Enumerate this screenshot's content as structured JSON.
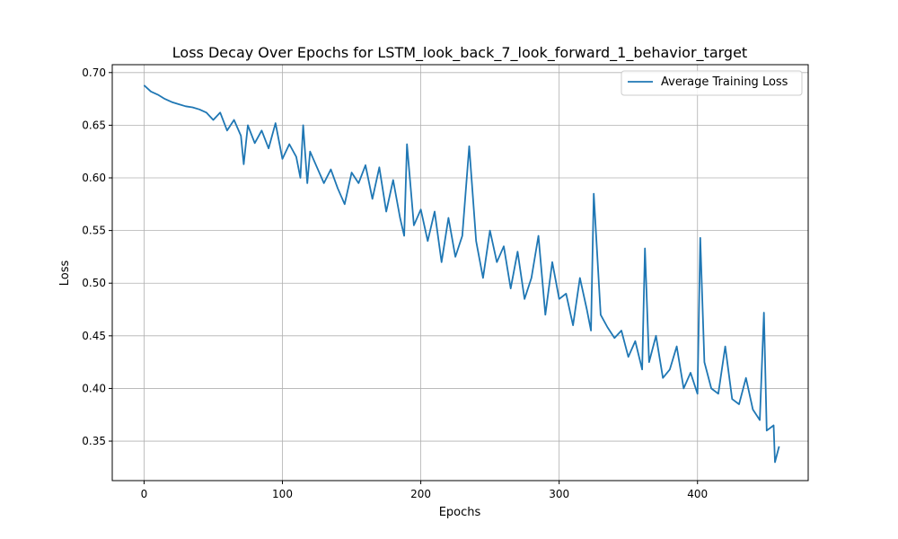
{
  "chart_data": {
    "type": "line",
    "title": "Loss Decay Over Epochs for LSTM_look_back_7_look_forward_1_behavior_target",
    "xlabel": "Epochs",
    "ylabel": "Loss",
    "xlim": [
      -23,
      480
    ],
    "ylim": [
      0.3125,
      0.7075
    ],
    "xticks": [
      0,
      100,
      200,
      300,
      400
    ],
    "yticks": [
      0.35,
      0.4,
      0.45,
      0.5,
      0.55,
      0.6,
      0.65,
      0.7
    ],
    "ytick_labels": [
      "0.35",
      "0.40",
      "0.45",
      "0.50",
      "0.55",
      "0.60",
      "0.65",
      "0.70"
    ],
    "grid": true,
    "legend_position": "upper right",
    "colors": {
      "series": "#1f77b4",
      "grid": "#b0b0b0"
    },
    "series": [
      {
        "name": "Average Training Loss",
        "x": [
          0,
          5,
          10,
          15,
          20,
          25,
          30,
          35,
          40,
          45,
          50,
          55,
          60,
          65,
          70,
          72,
          75,
          80,
          85,
          90,
          95,
          100,
          105,
          110,
          113,
          115,
          118,
          120,
          125,
          130,
          135,
          140,
          145,
          150,
          155,
          160,
          165,
          170,
          175,
          180,
          185,
          188,
          190,
          195,
          200,
          205,
          210,
          215,
          220,
          225,
          230,
          235,
          240,
          245,
          250,
          255,
          260,
          265,
          270,
          275,
          280,
          285,
          290,
          295,
          300,
          305,
          310,
          315,
          320,
          323,
          325,
          330,
          335,
          340,
          345,
          350,
          355,
          360,
          362,
          365,
          370,
          375,
          380,
          385,
          390,
          395,
          400,
          402,
          405,
          410,
          415,
          420,
          425,
          430,
          435,
          440,
          445,
          448,
          450,
          455,
          456,
          459
        ],
        "values": [
          0.688,
          0.682,
          0.679,
          0.675,
          0.672,
          0.67,
          0.668,
          0.667,
          0.665,
          0.662,
          0.655,
          0.662,
          0.645,
          0.655,
          0.64,
          0.613,
          0.65,
          0.633,
          0.645,
          0.628,
          0.652,
          0.618,
          0.632,
          0.62,
          0.6,
          0.65,
          0.595,
          0.625,
          0.61,
          0.595,
          0.608,
          0.59,
          0.575,
          0.605,
          0.595,
          0.612,
          0.58,
          0.61,
          0.568,
          0.598,
          0.562,
          0.545,
          0.632,
          0.555,
          0.57,
          0.54,
          0.568,
          0.52,
          0.562,
          0.525,
          0.545,
          0.63,
          0.54,
          0.505,
          0.55,
          0.52,
          0.535,
          0.495,
          0.53,
          0.485,
          0.505,
          0.545,
          0.47,
          0.52,
          0.485,
          0.49,
          0.46,
          0.505,
          0.475,
          0.455,
          0.585,
          0.47,
          0.458,
          0.448,
          0.455,
          0.43,
          0.445,
          0.418,
          0.533,
          0.425,
          0.45,
          0.41,
          0.418,
          0.44,
          0.4,
          0.415,
          0.395,
          0.543,
          0.425,
          0.4,
          0.395,
          0.44,
          0.39,
          0.385,
          0.41,
          0.38,
          0.37,
          0.472,
          0.36,
          0.365,
          0.33,
          0.345
        ]
      }
    ]
  }
}
